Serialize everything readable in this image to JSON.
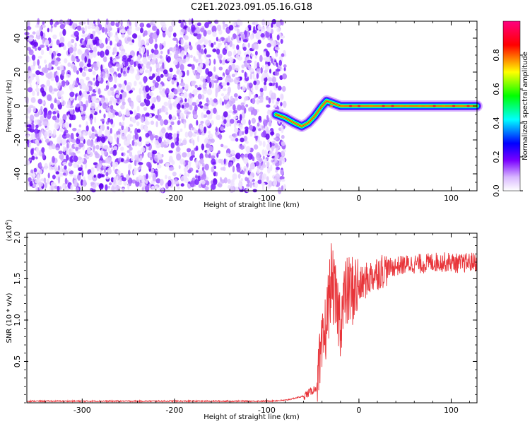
{
  "chart_data": [
    {
      "type": "heatmap",
      "title": "C2E1.2023.091.05.16.G18",
      "xlabel": "Height of straight line (km)",
      "ylabel": "Frequency (Hz)",
      "xlim": [
        -360,
        128
      ],
      "ylim": [
        -50,
        50
      ],
      "xticks": [
        -300,
        -200,
        -100,
        0,
        100
      ],
      "yticks": [
        -40,
        -20,
        0,
        20,
        40
      ],
      "xtick_labels": [
        "-300",
        "-200",
        "-100",
        "0",
        "100"
      ],
      "ytick_labels": [
        "-40",
        "-20",
        "0",
        "20",
        "40"
      ],
      "noise_region_x": [
        -360,
        -80
      ],
      "signal_trace": [
        {
          "x": -90,
          "y": -5
        },
        {
          "x": -80,
          "y": -7
        },
        {
          "x": -70,
          "y": -10
        },
        {
          "x": -62,
          "y": -12
        },
        {
          "x": -55,
          "y": -10
        },
        {
          "x": -48,
          "y": -6
        },
        {
          "x": -40,
          "y": 0
        },
        {
          "x": -35,
          "y": 3
        },
        {
          "x": -30,
          "y": 2
        },
        {
          "x": -20,
          "y": 0
        },
        {
          "x": 0,
          "y": 0
        },
        {
          "x": 20,
          "y": 0
        },
        {
          "x": 50,
          "y": 0
        },
        {
          "x": 80,
          "y": 0
        },
        {
          "x": 110,
          "y": 0
        },
        {
          "x": 128,
          "y": 0
        }
      ],
      "colorbar": {
        "label": "Normalized spectral amplitude",
        "range": [
          0,
          1
        ],
        "ticks": [
          0.0,
          0.2,
          0.4,
          0.6,
          0.8
        ],
        "tick_labels": [
          "0.0",
          "0.2",
          "0.4",
          "0.6",
          "0.8"
        ],
        "colors": [
          "#ffffff",
          "#7a00ff",
          "#0000ff",
          "#00ffff",
          "#00ff00",
          "#ffff00",
          "#ff0000",
          "#ff007f"
        ]
      }
    },
    {
      "type": "line",
      "xlabel": "Height of straight line (km)",
      "ylabel": "SNR (10 * v/v)",
      "yscale_label": "(x10",
      "yscale_exp": "4",
      "yscale_close": ")",
      "xlim": [
        -360,
        128
      ],
      "ylim": [
        0,
        2.05
      ],
      "xticks": [
        -300,
        -200,
        -100,
        0,
        100
      ],
      "yticks": [
        0.5,
        1.0,
        1.5,
        2.0
      ],
      "xtick_labels": [
        "-300",
        "-200",
        "-100",
        "0",
        "100"
      ],
      "ytick_labels": [
        "0.5",
        "1.0",
        "1.5",
        "2.0"
      ],
      "series": [
        {
          "color": "#e8353a",
          "x": [
            -360,
            -300,
            -200,
            -100,
            -80,
            -60,
            -50,
            -45,
            -40,
            -35,
            -30,
            -25,
            -20,
            -15,
            -10,
            0,
            10,
            20,
            30,
            40,
            50,
            60,
            70,
            80,
            90,
            100,
            110,
            120,
            128
          ],
          "y": [
            0.02,
            0.02,
            0.02,
            0.02,
            0.03,
            0.08,
            0.15,
            0.2,
            0.6,
            1.0,
            1.5,
            1.2,
            1.0,
            1.3,
            1.35,
            1.4,
            1.5,
            1.58,
            1.62,
            1.65,
            1.67,
            1.68,
            1.68,
            1.7,
            1.7,
            1.7,
            1.68,
            1.7,
            1.7
          ]
        }
      ]
    }
  ]
}
